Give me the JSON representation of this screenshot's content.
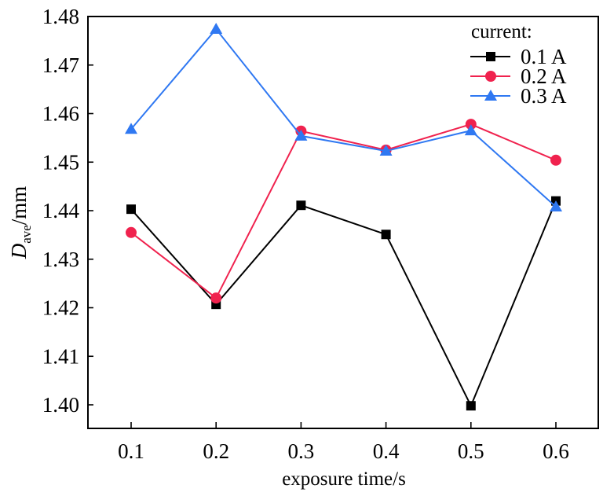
{
  "chart_data": {
    "type": "line",
    "title": "",
    "xlabel": "exposure time/s",
    "ylabel": {
      "main": "D",
      "subscript": "ave",
      "unit": "/mm"
    },
    "x": [
      0.1,
      0.2,
      0.3,
      0.4,
      0.5,
      0.6
    ],
    "x_tick_labels": [
      "0.1",
      "0.2",
      "0.3",
      "0.4",
      "0.5",
      "0.6"
    ],
    "xlim": [
      0.05,
      0.65
    ],
    "ylim": [
      1.395,
      1.48
    ],
    "y_ticks": [
      1.4,
      1.41,
      1.42,
      1.43,
      1.44,
      1.45,
      1.46,
      1.47,
      1.48
    ],
    "y_tick_labels": [
      "1.40",
      "1.41",
      "1.42",
      "1.43",
      "1.44",
      "1.45",
      "1.46",
      "1.47",
      "1.48"
    ],
    "grid": false,
    "legend": {
      "title": "current:",
      "placement": "top-right"
    },
    "series": [
      {
        "name": "0.1 A",
        "color": "#000000",
        "marker": "square",
        "values": [
          1.4403,
          1.4207,
          1.4411,
          1.4351,
          1.3998,
          1.442
        ]
      },
      {
        "name": "0.2 A",
        "color": "#f0224e",
        "marker": "circle",
        "values": [
          1.4355,
          1.422,
          1.4564,
          1.4525,
          1.4578,
          1.4504
        ]
      },
      {
        "name": "0.3 A",
        "color": "#2f78f2",
        "marker": "triangle",
        "values": [
          1.4568,
          1.4774,
          1.4554,
          1.4523,
          1.4565,
          1.4408
        ]
      }
    ]
  }
}
